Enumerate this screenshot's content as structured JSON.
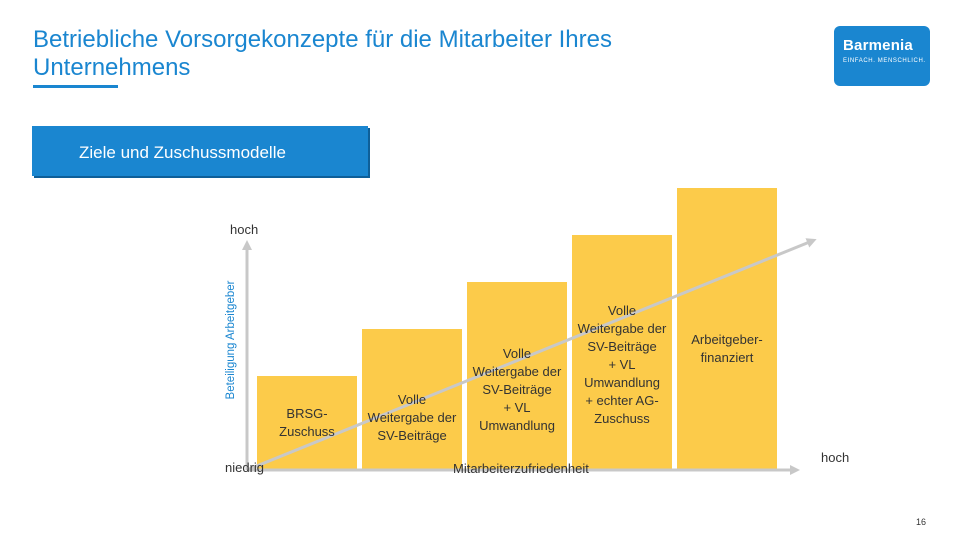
{
  "header": {
    "title": "Betriebliche Vorsorgekonzepte für die Mitarbeiter Ihres Unternehmens"
  },
  "logo": {
    "name": "Barmenia",
    "tagline": "EINFACH. MENSCHLICH."
  },
  "section": {
    "title": "Ziele und Zuschussmodelle"
  },
  "diagram": {
    "y_axis_label": "Beteiligung Arbeitgeber",
    "y_high_label": "hoch",
    "y_low_label": "niedrig",
    "x_high_label": "hoch",
    "x_axis_label": "Mitarbeiterzufriedenheit",
    "bar_color": "#fccb4a",
    "bars": [
      {
        "name": "BRSG-Zuschuss",
        "level": 1,
        "lines": [
          "BRSG-",
          "Zuschuss"
        ]
      },
      {
        "name": "Volle Weitergabe der SV-Beiträge",
        "level": 2,
        "lines": [
          "Volle",
          "Weitergabe der",
          "SV-Beiträge"
        ]
      },
      {
        "name": "Volle Weitergabe der SV-Beiträge + VL Umwandlung",
        "level": 3,
        "lines": [
          "Volle",
          "Weitergabe der",
          "SV-Beiträge",
          "+ VL",
          "Umwandlung"
        ]
      },
      {
        "name": "Volle Weitergabe der SV-Beiträge + VL Umwandlung + echter AG-Zuschuss",
        "level": 4,
        "lines": [
          "Volle",
          "Weitergabe der",
          "SV-Beiträge",
          "+ VL",
          "Umwandlung",
          "+ echter AG-",
          "Zuschuss"
        ]
      },
      {
        "name": "Arbeitgeber-finanziert",
        "level": 5,
        "lines": [
          "Arbeitgeber-",
          "finanziert"
        ]
      }
    ]
  },
  "footer": {
    "page_number": "16"
  }
}
